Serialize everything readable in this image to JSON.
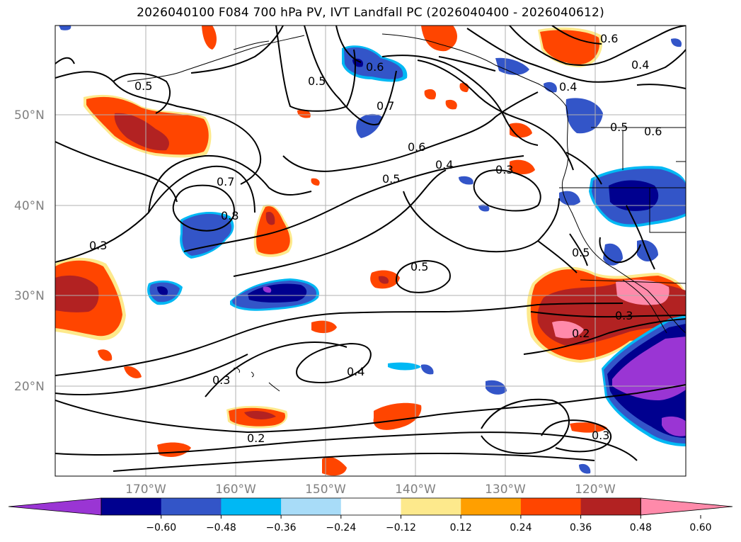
{
  "title": "2026040100 F084 700 hPa PV, IVT Landfall PC (2026040400 - 2026040612)",
  "map": {
    "lat_labels": [
      "50°N",
      "40°N",
      "30°N",
      "20°N"
    ],
    "lon_labels": [
      "170°W",
      "160°W",
      "150°W",
      "140°W",
      "130°W",
      "120°W"
    ],
    "contour_labels": [
      "0.5",
      "0.5",
      "0.6",
      "0.7",
      "0.6",
      "0.5",
      "0.4",
      "0.3",
      "0.7",
      "0.8",
      "0.3",
      "0.6",
      "0.4",
      "0.4",
      "0.5",
      "0.6",
      "0.5",
      "0.5",
      "0.3",
      "0.2",
      "0.4",
      "0.3",
      "0.2",
      "0.3"
    ]
  },
  "colorbar": {
    "ticks": [
      "−0.60",
      "−0.48",
      "−0.36",
      "−0.24",
      "−0.12",
      "0.12",
      "0.24",
      "0.36",
      "0.48",
      "0.60"
    ],
    "colors": [
      "#9a35d4",
      "#00008f",
      "#3355c8",
      "#00b8f4",
      "#a8dcf8",
      "#ffffff",
      "#fde98c",
      "#ff9f00",
      "#ff4500",
      "#b22222",
      "#ff8aaa"
    ]
  }
}
